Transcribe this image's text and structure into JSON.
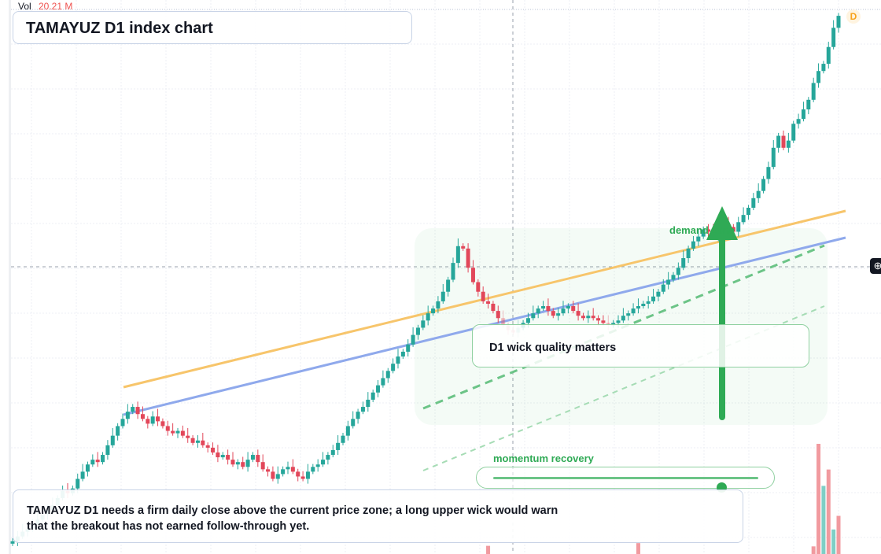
{
  "header": {
    "title": "TAMAYUZ D1 index chart",
    "volume_label": "Vol",
    "volume_value": "20.21 M",
    "interval_badge": "D"
  },
  "annotations": {
    "note": "TAMAYUZ D1 needs a firm daily close above the current price zone; a long upper wick would warn that the breakout has not earned follow-through yet.",
    "wick_callout": "D1 wick quality matters",
    "demand_zone_label": "demand zone",
    "momentum_label": "momentum recovery",
    "momentum_level": 0.86
  },
  "icons": {
    "crosshair": "crosshair-icon"
  },
  "colors": {
    "up": "#26a69a",
    "down": "#e2475a",
    "orange_line": "#f7c56b",
    "blue_line": "#8fa9ec",
    "zone_green": "#2faa55",
    "volume_down": "#f19a9f",
    "volume_up": "#7fcfc6"
  },
  "chart_data": {
    "type": "candlestick",
    "title": "TAMAYUZ D1 index chart",
    "interval": "D",
    "ylim": [
      0,
      100
    ],
    "grid": true,
    "closes": [
      4,
      6,
      8,
      9,
      11,
      13,
      15,
      17,
      19,
      22,
      25,
      24,
      26,
      30,
      33,
      36,
      38,
      37,
      40,
      44,
      48,
      52,
      55,
      58,
      60,
      57,
      55,
      53,
      56,
      54,
      52,
      50,
      49,
      50,
      48,
      47,
      45,
      46,
      44,
      43,
      41,
      39,
      40,
      38,
      36,
      37,
      35,
      38,
      40,
      37,
      34,
      33,
      30,
      32,
      34,
      35,
      33,
      31,
      30,
      33,
      35,
      36,
      38,
      40,
      42,
      45,
      48,
      52,
      55,
      58,
      60,
      63,
      66,
      69,
      72,
      75,
      78,
      81,
      83,
      86,
      90,
      93,
      96,
      99,
      101,
      104,
      108,
      113,
      120,
      127,
      126,
      118,
      112,
      108,
      104,
      103,
      100,
      97,
      94,
      92,
      91,
      93,
      95,
      97,
      99,
      101,
      102,
      100,
      98,
      99,
      101,
      102,
      100,
      98,
      97,
      98,
      97,
      96,
      95,
      94,
      95,
      96,
      98,
      99,
      101,
      102,
      103,
      104,
      106,
      108,
      111,
      113,
      115,
      118,
      122,
      126,
      129,
      131,
      134,
      133,
      131,
      134,
      136,
      135,
      133,
      137,
      140,
      143,
      147,
      150,
      155,
      160,
      168,
      173,
      168,
      171,
      178,
      180,
      184,
      188,
      195,
      200,
      203,
      210,
      218,
      223
    ],
    "volume_spikes": [
      {
        "candle": 95,
        "value": 1.5,
        "direction": "down"
      },
      {
        "candle": 125,
        "value": 2.0,
        "direction": "down"
      },
      {
        "candle": 160,
        "value": 1.4,
        "direction": "down"
      },
      {
        "candle": 161,
        "value": 20.21,
        "direction": "down"
      },
      {
        "candle": 162,
        "value": 12.5,
        "direction": "up"
      },
      {
        "candle": 163,
        "value": 15.5,
        "direction": "down"
      },
      {
        "candle": 164,
        "value": 4.5,
        "direction": "up"
      },
      {
        "candle": 165,
        "value": 7.0,
        "direction": "down"
      }
    ],
    "trendlines": [
      "orange resistance",
      "blue trend",
      "green channel dashed",
      "green channel lower dashed"
    ],
    "ylabel": "",
    "xlabel": ""
  }
}
